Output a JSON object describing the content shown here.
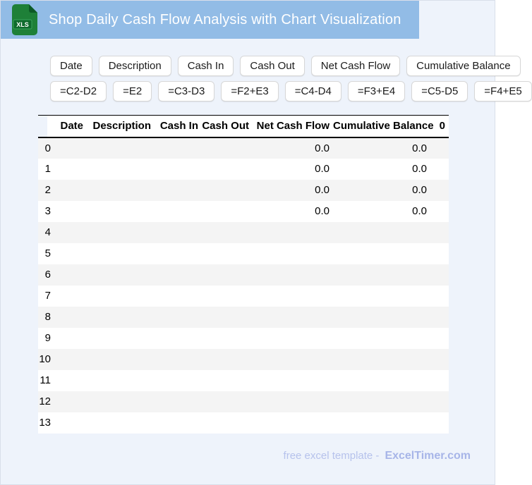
{
  "header": {
    "title": "Shop Daily Cash Flow Analysis with Chart Visualization",
    "file_badge": "XLS"
  },
  "column_buttons": [
    "Date",
    "Description",
    "Cash In",
    "Cash Out",
    "Net Cash Flow",
    "Cumulative Balance"
  ],
  "formula_buttons": [
    "=C2-D2",
    "=E2",
    "=C3-D3",
    "=F2+E3",
    "=C4-D4",
    "=F3+E4",
    "=C5-D5",
    "=F4+E5"
  ],
  "table": {
    "columns": [
      "Date",
      "Description",
      "Cash In",
      "Cash Out",
      "Net Cash Flow",
      "Cumulative Balance",
      "0"
    ],
    "rows": [
      {
        "index": "0",
        "cells": [
          "",
          "",
          "",
          "",
          "0.0",
          "0.0",
          ""
        ]
      },
      {
        "index": "1",
        "cells": [
          "",
          "",
          "",
          "",
          "0.0",
          "0.0",
          ""
        ]
      },
      {
        "index": "2",
        "cells": [
          "",
          "",
          "",
          "",
          "0.0",
          "0.0",
          ""
        ]
      },
      {
        "index": "3",
        "cells": [
          "",
          "",
          "",
          "",
          "0.0",
          "0.0",
          ""
        ]
      },
      {
        "index": "4",
        "cells": [
          "",
          "",
          "",
          "",
          "",
          "",
          ""
        ]
      },
      {
        "index": "5",
        "cells": [
          "",
          "",
          "",
          "",
          "",
          "",
          ""
        ]
      },
      {
        "index": "6",
        "cells": [
          "",
          "",
          "",
          "",
          "",
          "",
          ""
        ]
      },
      {
        "index": "7",
        "cells": [
          "",
          "",
          "",
          "",
          "",
          "",
          ""
        ]
      },
      {
        "index": "8",
        "cells": [
          "",
          "",
          "",
          "",
          "",
          "",
          ""
        ]
      },
      {
        "index": "9",
        "cells": [
          "",
          "",
          "",
          "",
          "",
          "",
          ""
        ]
      },
      {
        "index": "10",
        "cells": [
          "",
          "",
          "",
          "",
          "",
          "",
          ""
        ]
      },
      {
        "index": "11",
        "cells": [
          "",
          "",
          "",
          "",
          "",
          "",
          ""
        ]
      },
      {
        "index": "12",
        "cells": [
          "",
          "",
          "",
          "",
          "",
          "",
          ""
        ]
      },
      {
        "index": "13",
        "cells": [
          "",
          "",
          "",
          "",
          "",
          "",
          ""
        ]
      }
    ]
  },
  "footer": {
    "prefix": "free excel template -",
    "brand": "ExcelTimer.com"
  },
  "colors": {
    "header_bar": "#92bce6",
    "page_bg": "#eef3fb",
    "row_stripe": "#f4f4f4",
    "icon_green": "#1e8038",
    "icon_badge": "#0f6b2d",
    "footer_text": "#b6c2ec",
    "brand_text": "#a7b5e8"
  }
}
